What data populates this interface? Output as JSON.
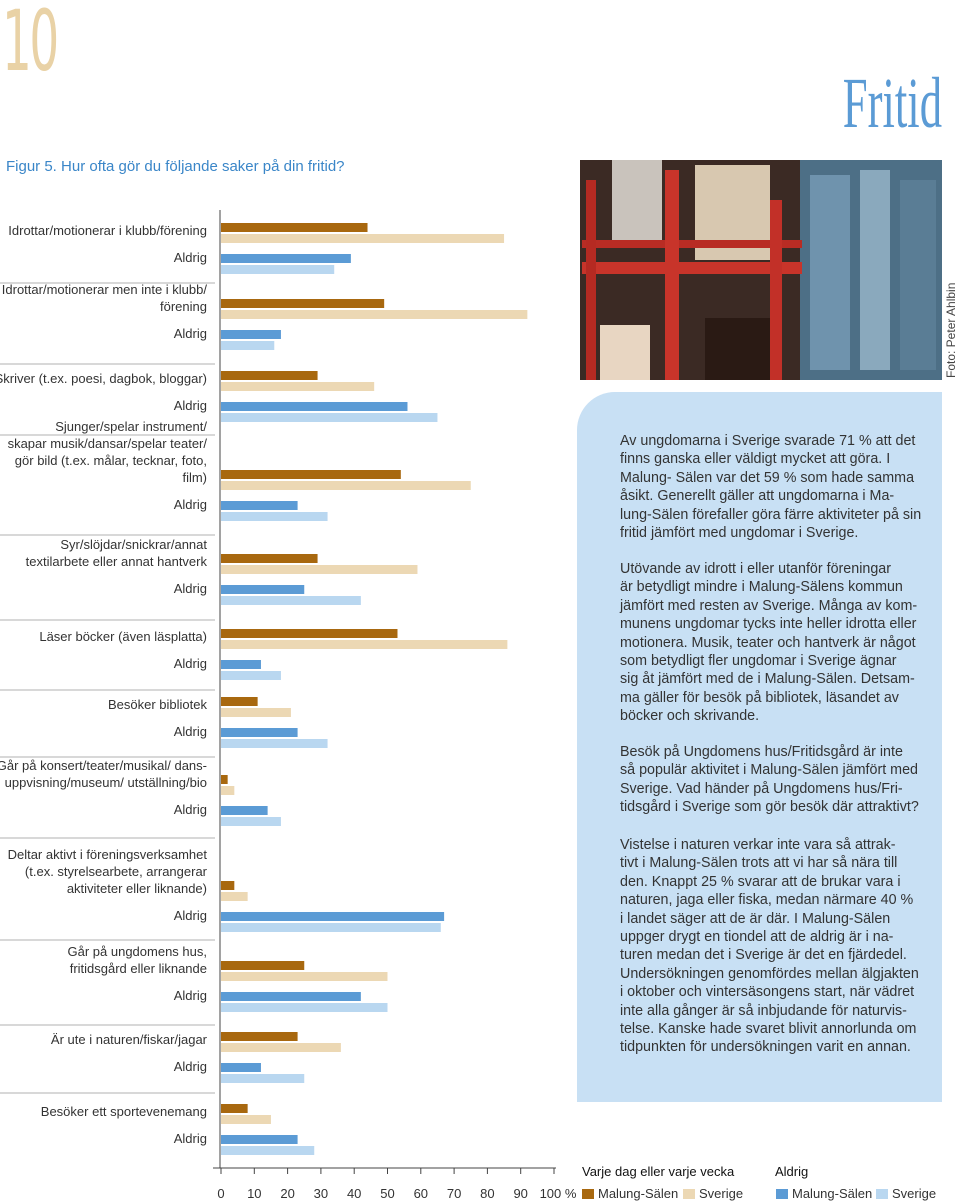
{
  "page_number": "10",
  "section_title": "Fritid",
  "figure_caption": "Figur 5. Hur ofta gör du följande saker på din fritid?",
  "photo_credit": "Foto: Peter Ahlbin",
  "chart_data": {
    "type": "bar",
    "orientation": "horizontal",
    "categories": [
      "Idrottar/motionerar i klubb/förening",
      "Idrottar/motionerar men inte i klubb/\nförening",
      "Skriver (t.ex. poesi, dagbok, bloggar)",
      "Sjunger/spelar instrument/\nskapar musik/dansar/spelar teater/\ngör bild (t.ex. målar, tecknar, foto, film)",
      "Syr/slöjdar/snickrar/annat\ntextilarbete eller annat hantverk",
      "Läser böcker (även läsplatta)",
      "Besöker bibliotek",
      "Går på konsert/teater/musikal/ dans-\nuppvisning/museum/ utställning/bio",
      "Deltar aktivt i föreningsverksamhet\n(t.ex. styrelsearbete, arrangerar\naktiviteter eller liknande)",
      "Går på ungdomens hus,\nfritidsgård eller liknande",
      "Är ute i naturen/fiskar/jagar",
      "Besöker ett sportevenemang"
    ],
    "legend_groups": [
      "Varje dag eller varje vecka",
      "Aldrig"
    ],
    "series": [
      {
        "name": "Malung-Sälen",
        "group": 0,
        "color": "#a8680f",
        "values": [
          44,
          49,
          29,
          54,
          29,
          53,
          11,
          2,
          4,
          25,
          23,
          8
        ]
      },
      {
        "name": "Sverige",
        "group": 0,
        "color": "#ecd8b4",
        "values": [
          85,
          92,
          46,
          75,
          59,
          86,
          21,
          4,
          8,
          50,
          36,
          15
        ]
      },
      {
        "name": "Malung-Sälen",
        "group": 1,
        "color": "#5b9bd5",
        "values": [
          39,
          18,
          56,
          23,
          25,
          12,
          23,
          14,
          67,
          42,
          12,
          23
        ]
      },
      {
        "name": "Sverige",
        "group": 1,
        "color": "#b9d7f0",
        "values": [
          34,
          16,
          65,
          32,
          42,
          18,
          32,
          18,
          66,
          50,
          25,
          28
        ]
      }
    ],
    "xlim": [
      0,
      100
    ],
    "xticks": [
      0,
      10,
      20,
      30,
      40,
      50,
      60,
      70,
      80,
      90,
      {
        "value": 100,
        "label": "100 %"
      }
    ]
  },
  "text_box": {
    "paragraphs": [
      [
        "Av ungdomarna i Sverige svarade 71 % att det",
        "finns ganska eller väldigt mycket att göra. I",
        "Malung- Sälen var det 59 % som hade samma",
        "åsikt. Generellt gäller att ungdomarna i Ma-",
        "lung-Sälen förefaller göra färre aktiviteter på sin",
        "fritid jämfört med ungdomar i Sverige."
      ],
      [
        "Utövande av idrott i eller utanför föreningar",
        "är betydligt mindre i Malung-Sälens kommun",
        "jämfört med resten av Sverige. Många av kom-",
        "munens ungdomar tycks inte heller idrotta eller",
        "motionera. Musik, teater och hantverk är något",
        "som betydligt fler ungdomar i Sverige ägnar",
        "sig åt jämfört med de i Malung-Sälen. Detsam-",
        "ma gäller för besök på bibliotek, läsandet av",
        "böcker och skrivande."
      ],
      [
        "Besök på Ungdomens hus/Fritidsgård är inte",
        "så populär aktivitet i Malung-Sälen jämfört med",
        "Sverige. Vad händer på Ungdomens hus/Fri-",
        "tidsgård i Sverige som gör besök där attraktivt?"
      ],
      [
        "Vistelse i naturen verkar inte vara så attrak-",
        "tivt i Malung-Sälen trots att vi har så nära till",
        "den. Knappt 25 % svarar att de brukar vara i",
        "naturen, jaga eller fiska, medan närmare 40 %",
        "i landet säger att de är där. I Malung-Sälen",
        "uppger drygt en tiondel att de aldrig är i na-",
        "turen medan det i Sverige är det en fjärdedel.",
        "Undersökningen genomfördes mellan älgjakten",
        "i oktober och vintersäsongens start, när vädret",
        "inte alla gånger är så inbjudande för naturvis-",
        "telse. Kanske hade svaret blivit annorlunda om",
        "tidpunkten för undersökningen varit en annan."
      ]
    ]
  }
}
